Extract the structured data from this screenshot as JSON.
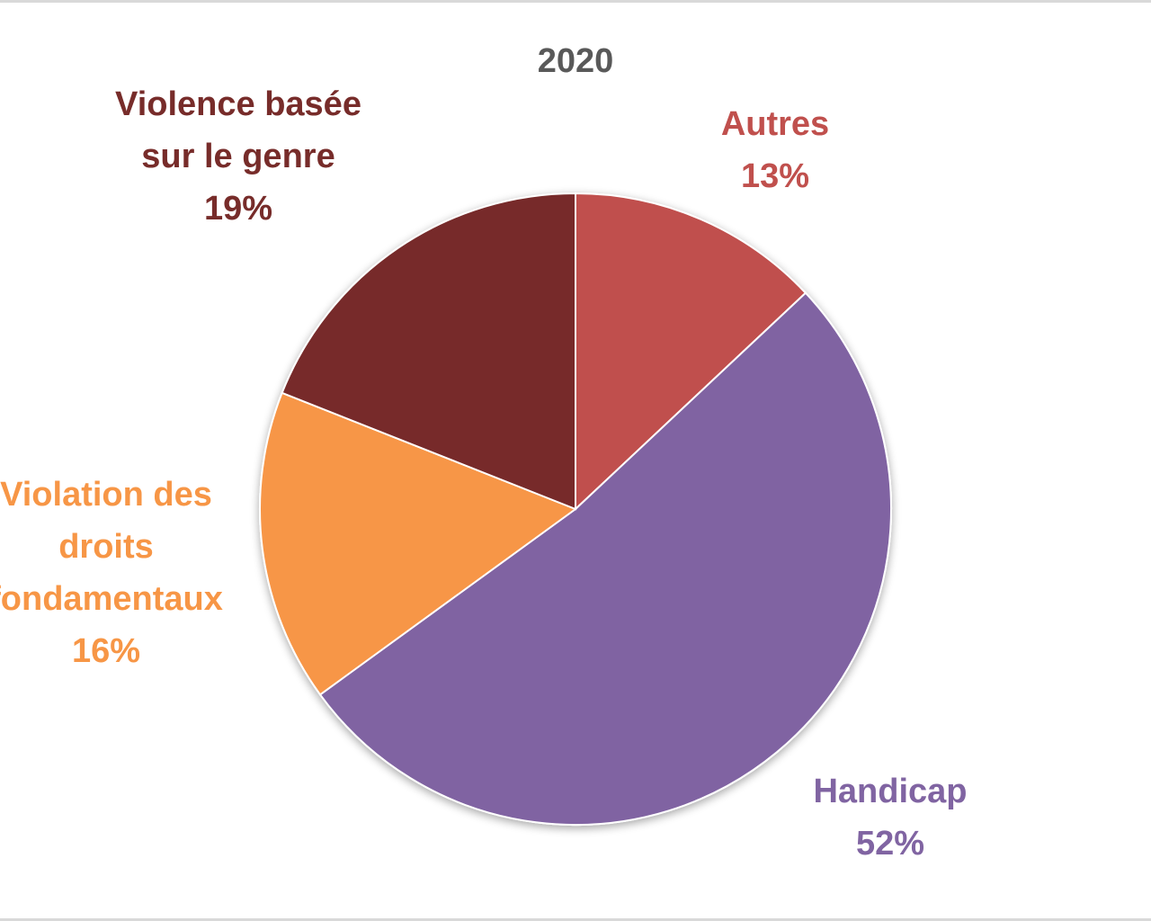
{
  "chart_data": {
    "type": "pie",
    "title": "2020",
    "start_angle_deg": 0,
    "direction": "clockwise",
    "legend": "none",
    "slices": [
      {
        "name": "Autres",
        "lines": [
          "Autres"
        ],
        "value": 13,
        "value_label": "13%",
        "color": "#c0504d"
      },
      {
        "name": "Handicap",
        "lines": [
          "Handicap"
        ],
        "value": 52,
        "value_label": "52%",
        "color": "#8064a2"
      },
      {
        "name": "Violation des droits fondamentaux",
        "lines": [
          "Violation des",
          "droits",
          "fondamentaux"
        ],
        "value": 16,
        "value_label": "16%",
        "color": "#f79646"
      },
      {
        "name": "Violence basée sur le genre",
        "lines": [
          "Violence basée",
          "sur le genre"
        ],
        "value": 19,
        "value_label": "19%",
        "color": "#772c2a"
      }
    ]
  }
}
